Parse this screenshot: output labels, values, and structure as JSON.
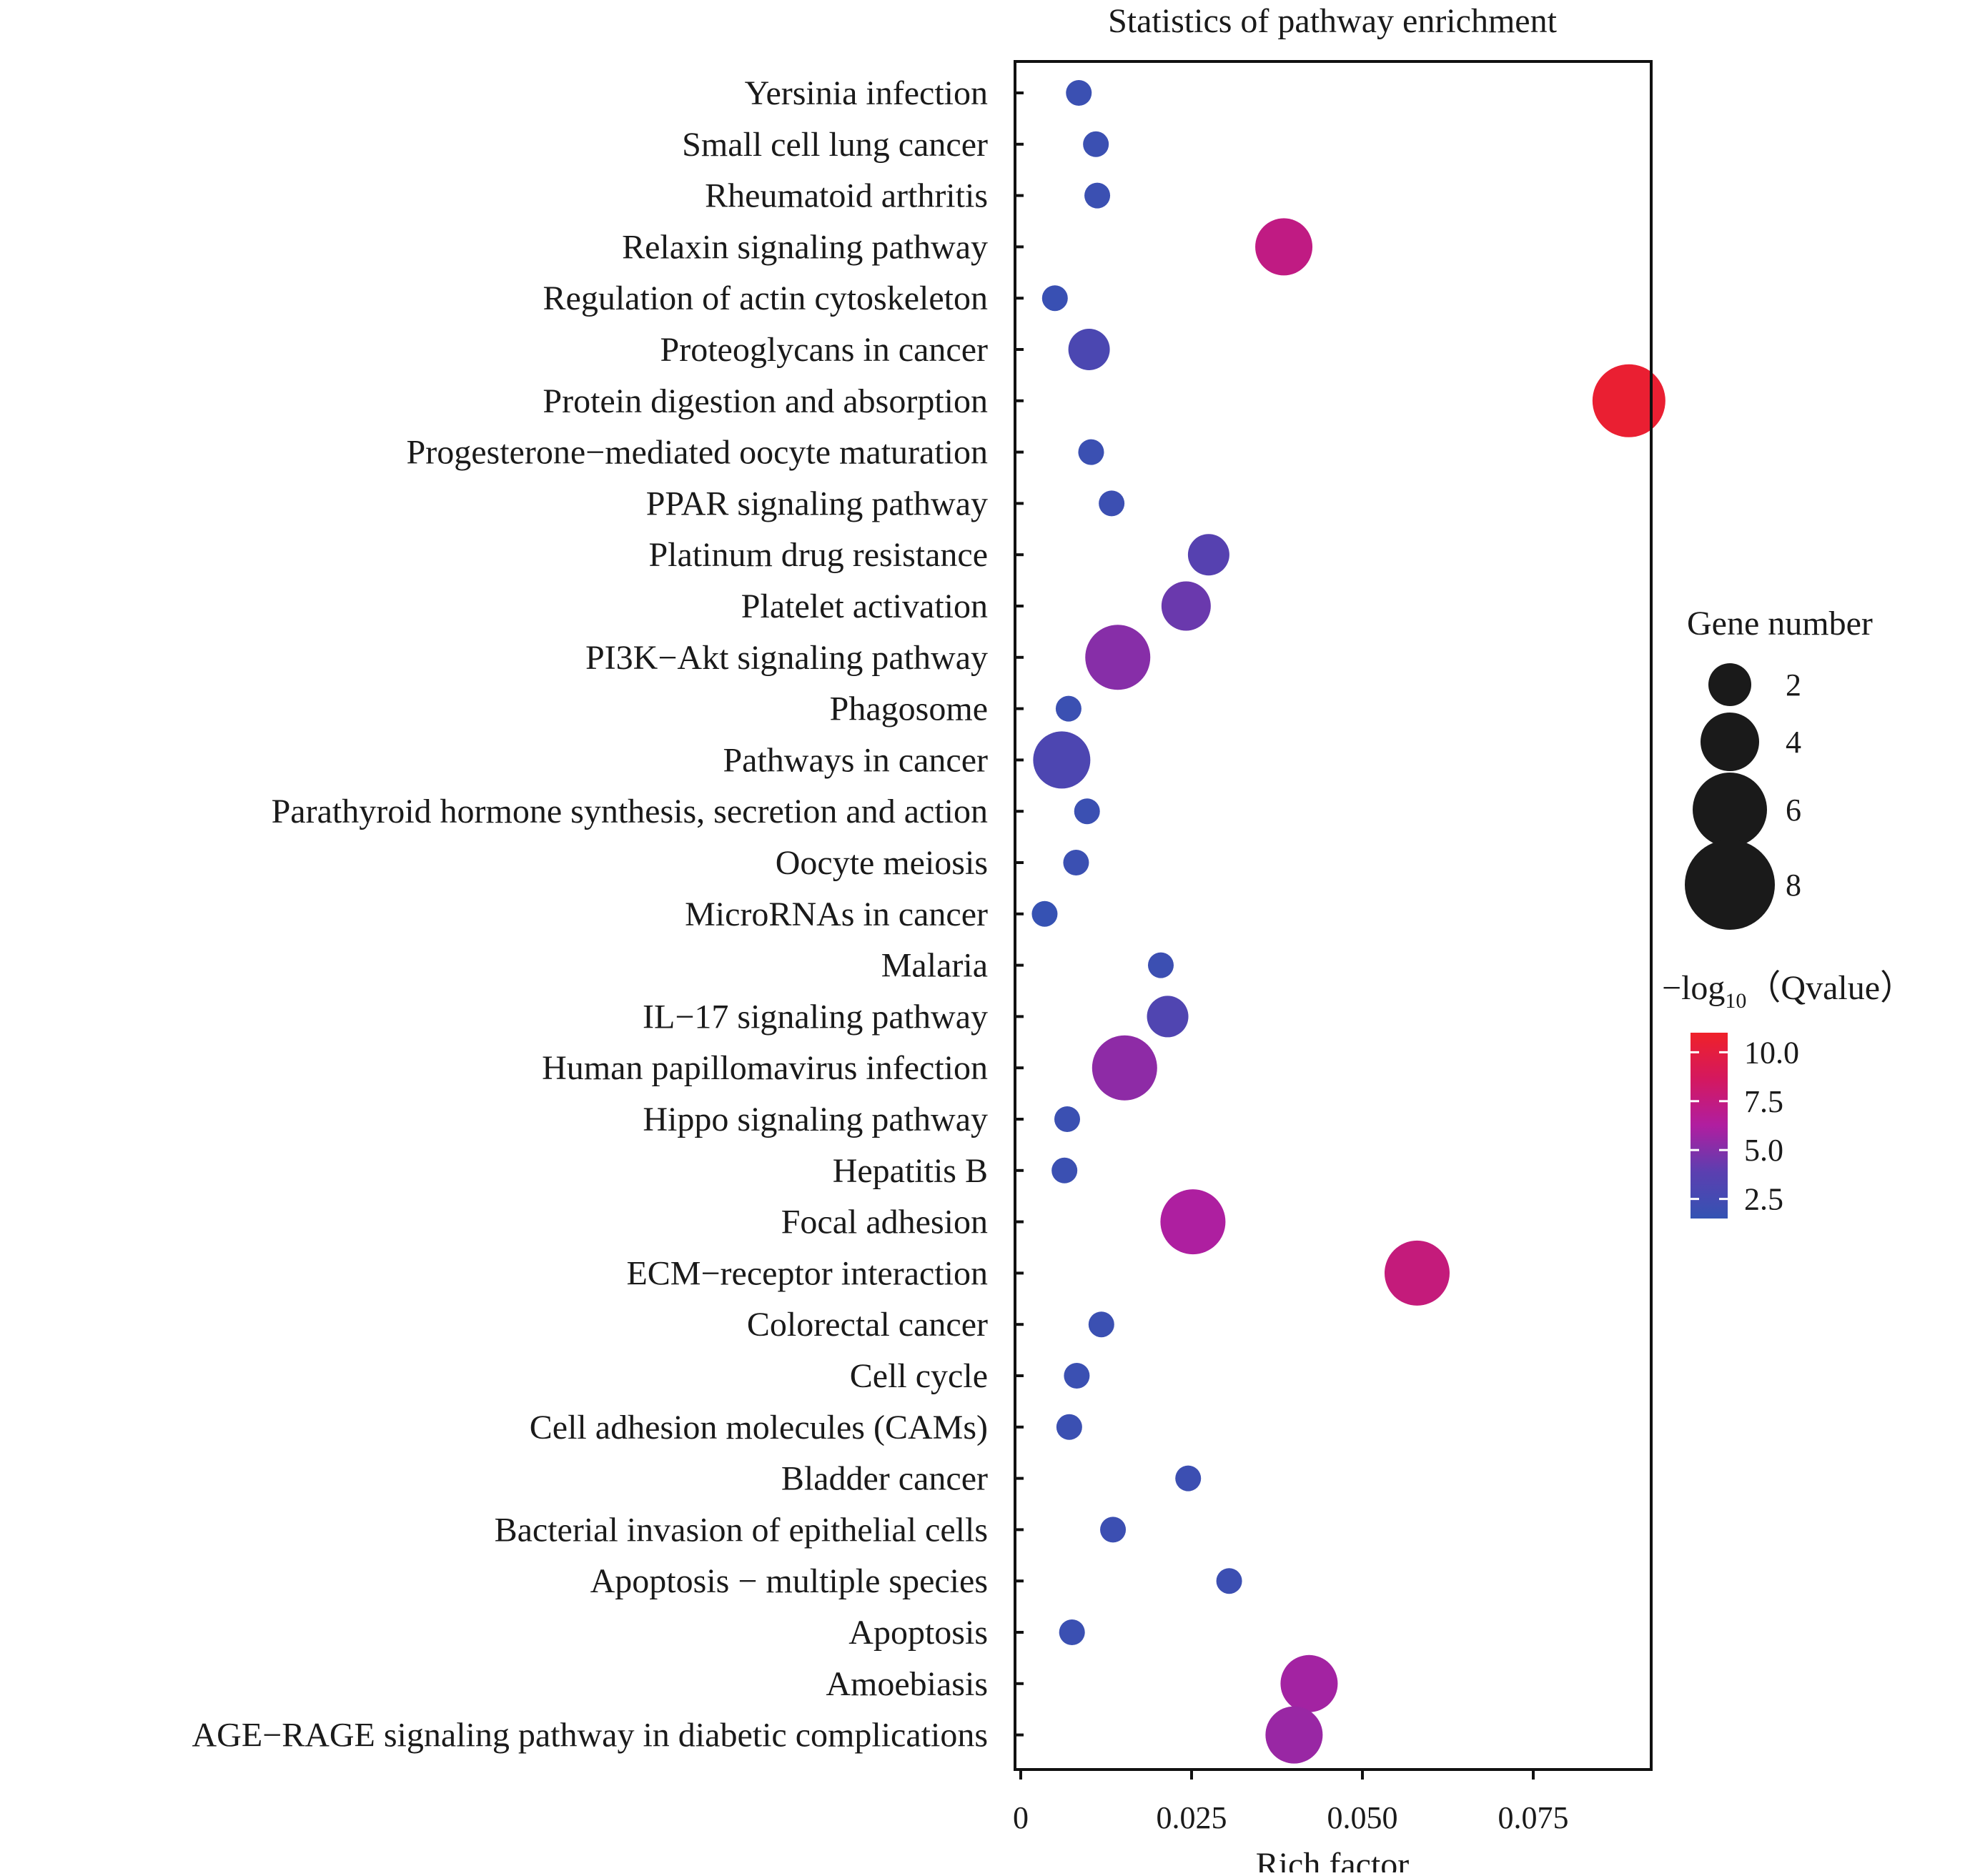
{
  "chart_data": {
    "type": "scatter",
    "title": "Statistics of pathway enrichment",
    "xlabel": "Rich factor",
    "ylabel": "",
    "xlim": [
      0,
      0.093
    ],
    "xticks": [
      0,
      0.025,
      0.05,
      0.075
    ],
    "xtick_labels": [
      "0",
      "0.025",
      "0.050",
      "0.075"
    ],
    "grid": false,
    "legend_position": "right",
    "size_legend": {
      "title": "Gene number",
      "values": [
        2,
        4,
        6,
        8
      ],
      "labels": [
        "2",
        "4",
        "6",
        "8"
      ]
    },
    "color_legend": {
      "title_prefix": "−log",
      "title_sub": "10",
      "title_suffix": "（Qvalue）",
      "range": [
        1.5,
        11
      ],
      "ticks": [
        2.5,
        5.0,
        7.5,
        10.0
      ],
      "tick_labels": [
        "2.5",
        "5.0",
        "7.5",
        "10.0"
      ],
      "colors": [
        "#3453b3",
        "#5b3fb0",
        "#b01ea0",
        "#d4185f",
        "#ef2129"
      ]
    },
    "points": [
      {
        "pathway": "Yersinia infection",
        "rich_factor": 0.0085,
        "gene_number": 2,
        "neg_log10_q": 1.9
      },
      {
        "pathway": "Small cell lung cancer",
        "rich_factor": 0.011,
        "gene_number": 2,
        "neg_log10_q": 1.9
      },
      {
        "pathway": "Rheumatoid arthritis",
        "rich_factor": 0.0112,
        "gene_number": 2,
        "neg_log10_q": 1.9
      },
      {
        "pathway": "Relaxin signaling pathway",
        "rich_factor": 0.0385,
        "gene_number": 6,
        "neg_log10_q": 7.3
      },
      {
        "pathway": "Regulation of actin cytoskeleton",
        "rich_factor": 0.005,
        "gene_number": 2,
        "neg_log10_q": 1.8
      },
      {
        "pathway": "Proteoglycans in cancer",
        "rich_factor": 0.01,
        "gene_number": 4,
        "neg_log10_q": 2.9
      },
      {
        "pathway": "Protein digestion and absorption",
        "rich_factor": 0.089,
        "gene_number": 8,
        "neg_log10_q": 10.6
      },
      {
        "pathway": "Progesterone−mediated oocyte maturation",
        "rich_factor": 0.0103,
        "gene_number": 2,
        "neg_log10_q": 1.9
      },
      {
        "pathway": "PPAR signaling pathway",
        "rich_factor": 0.0133,
        "gene_number": 2,
        "neg_log10_q": 2.0
      },
      {
        "pathway": "Platinum drug resistance",
        "rich_factor": 0.0275,
        "gene_number": 4,
        "neg_log10_q": 3.6
      },
      {
        "pathway": "Platelet activation",
        "rich_factor": 0.0242,
        "gene_number": 5,
        "neg_log10_q": 4.3
      },
      {
        "pathway": "PI3K−Akt signaling pathway",
        "rich_factor": 0.0142,
        "gene_number": 7,
        "neg_log10_q": 5.1
      },
      {
        "pathway": "Phagosome",
        "rich_factor": 0.007,
        "gene_number": 2,
        "neg_log10_q": 1.9
      },
      {
        "pathway": "Pathways in cancer",
        "rich_factor": 0.006,
        "gene_number": 6,
        "neg_log10_q": 3.0
      },
      {
        "pathway": "Parathyroid hormone synthesis, secretion and action",
        "rich_factor": 0.0097,
        "gene_number": 2,
        "neg_log10_q": 1.9
      },
      {
        "pathway": "Oocyte meiosis",
        "rich_factor": 0.0081,
        "gene_number": 2,
        "neg_log10_q": 1.9
      },
      {
        "pathway": "MicroRNAs in cancer",
        "rich_factor": 0.0035,
        "gene_number": 2,
        "neg_log10_q": 1.6
      },
      {
        "pathway": "Malaria",
        "rich_factor": 0.0205,
        "gene_number": 2,
        "neg_log10_q": 2.0
      },
      {
        "pathway": "IL−17 signaling pathway",
        "rich_factor": 0.0215,
        "gene_number": 4,
        "neg_log10_q": 3.2
      },
      {
        "pathway": "Human papillomavirus infection",
        "rich_factor": 0.0152,
        "gene_number": 7,
        "neg_log10_q": 5.3
      },
      {
        "pathway": "Hippo signaling pathway",
        "rich_factor": 0.0068,
        "gene_number": 2,
        "neg_log10_q": 1.9
      },
      {
        "pathway": "Hepatitis B",
        "rich_factor": 0.0064,
        "gene_number": 2,
        "neg_log10_q": 1.9
      },
      {
        "pathway": "Focal adhesion",
        "rich_factor": 0.0252,
        "gene_number": 7,
        "neg_log10_q": 6.2
      },
      {
        "pathway": "ECM−receptor interaction",
        "rich_factor": 0.058,
        "gene_number": 7,
        "neg_log10_q": 7.6
      },
      {
        "pathway": "Colorectal cancer",
        "rich_factor": 0.0118,
        "gene_number": 2,
        "neg_log10_q": 1.9
      },
      {
        "pathway": "Cell cycle",
        "rich_factor": 0.0082,
        "gene_number": 2,
        "neg_log10_q": 1.9
      },
      {
        "pathway": "Cell adhesion molecules (CAMs)",
        "rich_factor": 0.0071,
        "gene_number": 2,
        "neg_log10_q": 1.9
      },
      {
        "pathway": "Bladder cancer",
        "rich_factor": 0.0245,
        "gene_number": 2,
        "neg_log10_q": 2.0
      },
      {
        "pathway": "Bacterial invasion of epithelial cells",
        "rich_factor": 0.0135,
        "gene_number": 2,
        "neg_log10_q": 2.0
      },
      {
        "pathway": "Apoptosis − multiple species",
        "rich_factor": 0.0305,
        "gene_number": 2,
        "neg_log10_q": 2.0
      },
      {
        "pathway": "Apoptosis",
        "rich_factor": 0.0075,
        "gene_number": 2,
        "neg_log10_q": 1.9
      },
      {
        "pathway": "Amoebiasis",
        "rich_factor": 0.0422,
        "gene_number": 6,
        "neg_log10_q": 5.9
      },
      {
        "pathway": "AGE−RAGE signaling pathway in diabetic complications",
        "rich_factor": 0.04,
        "gene_number": 6,
        "neg_log10_q": 5.6
      }
    ]
  }
}
